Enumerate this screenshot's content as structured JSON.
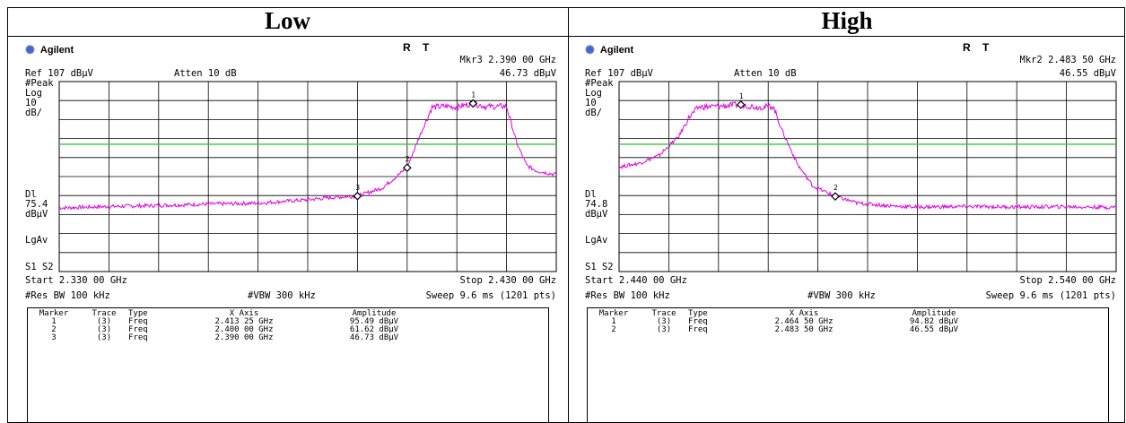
{
  "headers": {
    "low": "Low",
    "high": "High"
  },
  "brand": {
    "name": "Agilent",
    "icon": "starburst-icon"
  },
  "status_letters": "R T",
  "colors": {
    "trace": "#e000e0",
    "limit_line": "#33cc33",
    "grid": "#000000"
  },
  "panels": [
    {
      "id": "low",
      "marker_readout": {
        "label": "Mkr3 2.390 00 GHz",
        "value": "46.73 dBµV"
      },
      "ref": "Ref 107 dBµV",
      "atten": "Atten 10 dB",
      "left_labels": [
        "#Peak",
        "Log",
        "10",
        "dB/"
      ],
      "dl_labels": [
        "Dl",
        "75.4",
        "dBµV"
      ],
      "lgav": "LgAv",
      "s1s2": "S1  S2",
      "start": "Start 2.330 00 GHz",
      "stop": "Stop 2.430 00 GHz",
      "res_bw": "#Res BW 100 kHz",
      "vbw": "#VBW 300 kHz",
      "sweep": "Sweep 9.6 ms (1201 pts)",
      "table": {
        "columns": [
          "Marker",
          "Trace",
          "Type",
          "X Axis",
          "Amplitude"
        ],
        "rows": [
          [
            "1",
            "(3)",
            "Freq",
            "2.413 25 GHz",
            "95.49 dBµV"
          ],
          [
            "2",
            "(3)",
            "Freq",
            "2.400 00 GHz",
            "61.62 dBµV"
          ],
          [
            "3",
            "(3)",
            "Freq",
            "2.390 00 GHz",
            "46.73 dBµV"
          ]
        ]
      }
    },
    {
      "id": "high",
      "marker_readout": {
        "label": "Mkr2 2.483 50 GHz",
        "value": "46.55 dBµV"
      },
      "ref": "Ref 107 dBµV",
      "atten": "Atten 10 dB",
      "left_labels": [
        "#Peak",
        "Log",
        "10",
        "dB/"
      ],
      "dl_labels": [
        "Dl",
        "74.8",
        "dBµV"
      ],
      "lgav": "LgAv",
      "s1s2": "S1  S2",
      "start": "Start 2.440 00 GHz",
      "stop": "Stop 2.540 00 GHz",
      "res_bw": "#Res BW 100 kHz",
      "vbw": "#VBW 300 kHz",
      "sweep": "Sweep 9.6 ms (1201 pts)",
      "table": {
        "columns": [
          "Marker",
          "Trace",
          "Type",
          "X Axis",
          "Amplitude"
        ],
        "rows": [
          [
            "1",
            "(3)",
            "Freq",
            "2.464 50 GHz",
            "94.82 dBµV"
          ],
          [
            "2",
            "(3)",
            "Freq",
            "2.483 50 GHz",
            "46.55 dBµV"
          ]
        ]
      }
    }
  ],
  "chart_data": [
    {
      "type": "line",
      "title": "",
      "x_unit": "GHz",
      "y_unit": "dBµV",
      "xlim": [
        2.33,
        2.43
      ],
      "ylim": [
        7,
        107
      ],
      "scale": "log 10 dB/div",
      "limit_line": 74,
      "display_line": 75.4,
      "series": [
        {
          "x": [
            2.33,
            2.34,
            2.35,
            2.36,
            2.37,
            2.38,
            2.385,
            2.39,
            2.395,
            2.4,
            2.402,
            2.405,
            2.408,
            2.41,
            2.413,
            2.416,
            2.42,
            2.422,
            2.424,
            2.426,
            2.43
          ],
          "y": [
            40.5,
            41.2,
            41.8,
            42.5,
            43.0,
            44.8,
            46.0,
            46.73,
            51.0,
            61.62,
            75.0,
            93.5,
            94.0,
            93.5,
            95.49,
            93.8,
            94.0,
            75.0,
            63.0,
            60.0,
            58.0
          ]
        }
      ],
      "markers": [
        {
          "n": "1",
          "x": 2.41325,
          "y": 95.49
        },
        {
          "n": "2",
          "x": 2.4,
          "y": 61.62
        },
        {
          "n": "3",
          "x": 2.39,
          "y": 46.73
        }
      ]
    },
    {
      "type": "line",
      "title": "",
      "x_unit": "GHz",
      "y_unit": "dBµV",
      "xlim": [
        2.44,
        2.54
      ],
      "ylim": [
        7,
        107
      ],
      "scale": "log 10 dB/div",
      "limit_line": 74,
      "display_line": 74.8,
      "series": [
        {
          "x": [
            2.44,
            2.444,
            2.448,
            2.452,
            2.454,
            2.456,
            2.46,
            2.4645,
            2.468,
            2.471,
            2.473,
            2.476,
            2.479,
            2.4835,
            2.488,
            2.495,
            2.5,
            2.51,
            2.52,
            2.53,
            2.54
          ],
          "y": [
            62.0,
            64.0,
            68.0,
            78.0,
            88.0,
            93.5,
            94.0,
            94.82,
            93.5,
            94.0,
            80.0,
            63.0,
            52.0,
            46.55,
            43.0,
            41.5,
            41.0,
            41.2,
            41.0,
            41.1,
            40.8
          ]
        }
      ],
      "markers": [
        {
          "n": "1",
          "x": 2.4645,
          "y": 94.82
        },
        {
          "n": "2",
          "x": 2.4835,
          "y": 46.55
        }
      ]
    }
  ]
}
